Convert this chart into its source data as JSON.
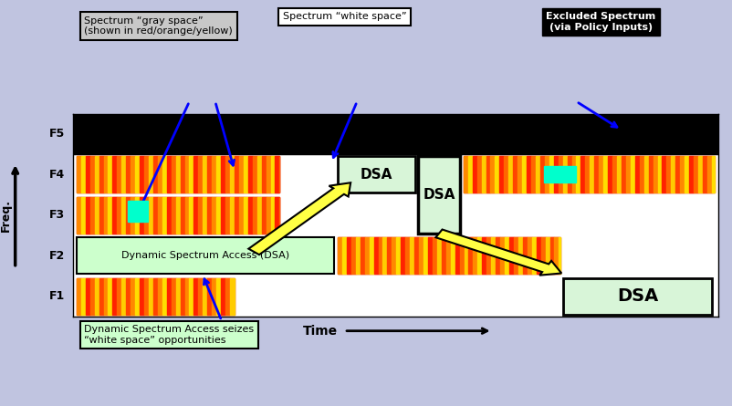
{
  "bg_color": "#c0c4e0",
  "chart_bg": "#ffffff",
  "figsize": [
    8.03,
    4.45
  ],
  "dpi": 100,
  "freq_labels": [
    "F1",
    "F2",
    "F3",
    "F4",
    "F5"
  ],
  "annotations": {
    "gray_space": "Spectrum “gray space”\n(shown in red/orange/yellow)",
    "white_space": "Spectrum “white space”",
    "excluded": "Excluded Spectrum\n(via Policy Inputs)",
    "dsa_label": "Dynamic Spectrum Access (DSA)",
    "dsa_seizes": "Dynamic Spectrum Access seizes\n“white space” opportunities",
    "time_label": "Time"
  },
  "stripe_colors": [
    "#ff0000",
    "#ff8800",
    "#ffdd00",
    "#ff4400",
    "#ffcc00"
  ],
  "cyan_color": "#00ffcc",
  "dsa_box_color": "#d8f5d8",
  "dsa_box_edge": "#000000",
  "excluded_color": "#000000",
  "gray_box_color": "#c8c8c8",
  "green_box_color": "#ccffcc",
  "white_box_color": "#ffffff",
  "black_box_color": "#000000"
}
